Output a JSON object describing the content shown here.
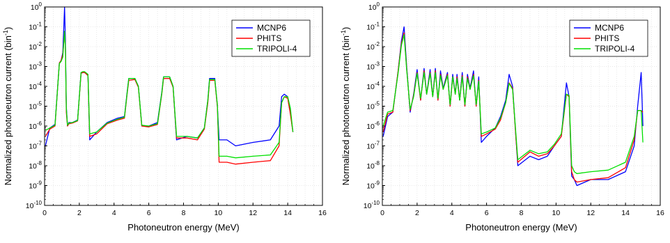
{
  "chart_data": [
    {
      "type": "line",
      "title": "",
      "xlabel": "Photoneutron energy (MeV)",
      "ylabel_main": "Normalized photoneutron current (bin",
      "ylabel_sup": "-1",
      "ylabel_close": ")",
      "xlim": [
        0,
        16
      ],
      "ylim": [
        1e-10,
        1
      ],
      "yscale": "log",
      "grid": true,
      "legend_position": "top-right",
      "x_ticks": [
        "0",
        "2",
        "4",
        "6",
        "8",
        "10",
        "12",
        "14",
        "16"
      ],
      "y_ticks": [
        {
          "base": "10",
          "exp": "-10"
        },
        {
          "base": "10",
          "exp": "-9"
        },
        {
          "base": "10",
          "exp": "-8"
        },
        {
          "base": "10",
          "exp": "-7"
        },
        {
          "base": "10",
          "exp": "-6"
        },
        {
          "base": "10",
          "exp": "-5"
        },
        {
          "base": "10",
          "exp": "-4"
        },
        {
          "base": "10",
          "exp": "-3"
        },
        {
          "base": "10",
          "exp": "-2"
        },
        {
          "base": "10",
          "exp": "-1"
        },
        {
          "base": "10",
          "exp": "0"
        }
      ],
      "series": [
        {
          "name": "MCNP6",
          "color": "#0000ff",
          "x": [
            0.05,
            0.3,
            0.6,
            0.85,
            0.95,
            1.05,
            1.15,
            1.2,
            1.25,
            1.32,
            1.4,
            1.6,
            1.9,
            2.1,
            2.2,
            2.3,
            2.5,
            2.6,
            3.0,
            3.6,
            4.2,
            4.6,
            4.75,
            4.85,
            5.2,
            5.4,
            5.6,
            6.0,
            6.5,
            6.75,
            6.85,
            7.2,
            7.4,
            7.6,
            8.2,
            8.8,
            9.2,
            9.4,
            9.5,
            9.8,
            9.95,
            10.05,
            10.5,
            11.0,
            12.0,
            13.0,
            13.5,
            13.65,
            13.8,
            14.0,
            14.15,
            14.3
          ],
          "y": [
            1e-07,
            8e-07,
            1.2e-06,
            0.0015,
            0.002,
            0.005,
            1,
            0.02,
            1e-05,
            1e-06,
            1.5e-06,
            1.5e-06,
            2e-06,
            0.0005,
            0.0005,
            0.0005,
            0.0004,
            2e-07,
            5e-07,
            1.5e-06,
            2.5e-06,
            3e-06,
            5e-05,
            0.00025,
            0.00025,
            0.0001,
            1e-06,
            1e-06,
            1.5e-06,
            5e-05,
            0.0003,
            0.0003,
            0.0001,
            2e-07,
            3e-07,
            2.5e-07,
            8e-07,
            2e-05,
            0.00025,
            0.00025,
            1e-05,
            2e-07,
            2e-07,
            1e-07,
            1.5e-07,
            2e-07,
            1e-06,
            3e-05,
            4e-05,
            3e-05,
            5e-06,
            5e-07
          ]
        },
        {
          "name": "PHITS",
          "color": "#ff0000",
          "x": [
            0.05,
            0.3,
            0.6,
            0.85,
            0.95,
            1.05,
            1.15,
            1.2,
            1.25,
            1.32,
            1.4,
            1.6,
            1.9,
            2.1,
            2.2,
            2.3,
            2.5,
            2.6,
            3.0,
            3.6,
            4.2,
            4.6,
            4.75,
            4.85,
            5.2,
            5.4,
            5.6,
            6.0,
            6.5,
            6.75,
            6.85,
            7.2,
            7.4,
            7.6,
            8.2,
            8.8,
            9.2,
            9.4,
            9.5,
            9.8,
            9.95,
            10.05,
            10.5,
            11.0,
            12.0,
            13.0,
            13.5,
            13.65,
            13.8,
            14.0,
            14.15,
            14.3
          ],
          "y": [
            3e-07,
            7e-07,
            1e-06,
            0.0015,
            0.002,
            0.004,
            0.05,
            0.01,
            5e-06,
            1e-06,
            1.3e-06,
            1.4e-06,
            1.8e-06,
            0.00045,
            0.0005,
            0.0005,
            0.00035,
            3e-07,
            4e-07,
            1.3e-06,
            2e-06,
            2.5e-06,
            4e-05,
            0.0002,
            0.00022,
            9e-05,
            1e-06,
            9e-07,
            1.2e-06,
            4e-05,
            0.00025,
            0.00025,
            9e-05,
            2.5e-07,
            2.5e-07,
            2e-07,
            7e-07,
            1.5e-05,
            0.0002,
            0.0002,
            1e-05,
            1.5e-08,
            1.5e-08,
            1.2e-08,
            1.5e-08,
            1.8e-08,
            1e-07,
            1.5e-05,
            3e-05,
            2.5e-05,
            4e-06,
            5e-07
          ]
        },
        {
          "name": "TRIPOLI-4",
          "color": "#00e000",
          "x": [
            0.05,
            0.3,
            0.6,
            0.85,
            0.95,
            1.05,
            1.15,
            1.2,
            1.25,
            1.32,
            1.4,
            1.6,
            1.9,
            2.1,
            2.2,
            2.3,
            2.5,
            2.6,
            3.0,
            3.6,
            4.2,
            4.6,
            4.75,
            4.85,
            5.2,
            5.4,
            5.6,
            6.0,
            6.5,
            6.75,
            6.85,
            7.2,
            7.4,
            7.6,
            8.2,
            8.8,
            9.2,
            9.4,
            9.5,
            9.8,
            9.95,
            10.05,
            10.5,
            11.0,
            12.0,
            13.0,
            13.5,
            13.65,
            13.8,
            14.0,
            14.15,
            14.3
          ],
          "y": [
            6e-07,
            8e-07,
            1.1e-06,
            0.0014,
            0.0018,
            0.003,
            0.06,
            0.01,
            8e-06,
            1.1e-06,
            1.4e-06,
            1.5e-06,
            1.9e-06,
            0.0005,
            0.00055,
            0.00055,
            0.0004,
            4e-07,
            5e-07,
            1.4e-06,
            2.2e-06,
            2.8e-06,
            4.5e-05,
            0.00025,
            0.00025,
            0.0001,
            1.1e-06,
            1e-06,
            1.3e-06,
            4.5e-05,
            0.0003,
            0.0003,
            0.0001,
            3e-07,
            3e-07,
            2.5e-07,
            8e-07,
            2e-05,
            0.00022,
            0.00022,
            1.2e-05,
            3e-08,
            3e-08,
            2.5e-08,
            3e-08,
            3.5e-08,
            1.5e-07,
            1.5e-05,
            3e-05,
            3e-05,
            8e-06,
            5e-07
          ]
        }
      ]
    },
    {
      "type": "line",
      "title": "",
      "xlabel": "Photoneutron energy (MeV)",
      "ylabel_main": "Normalized photoneutron current (bin",
      "ylabel_sup": "-1",
      "ylabel_close": ")",
      "xlim": [
        0,
        16
      ],
      "ylim": [
        1e-10,
        1
      ],
      "yscale": "log",
      "grid": true,
      "legend_position": "top-right",
      "x_ticks": [
        "0",
        "2",
        "4",
        "6",
        "8",
        "10",
        "12",
        "14",
        "16"
      ],
      "y_ticks": [
        {
          "base": "10",
          "exp": "-10"
        },
        {
          "base": "10",
          "exp": "-9"
        },
        {
          "base": "10",
          "exp": "-8"
        },
        {
          "base": "10",
          "exp": "-7"
        },
        {
          "base": "10",
          "exp": "-6"
        },
        {
          "base": "10",
          "exp": "-5"
        },
        {
          "base": "10",
          "exp": "-4"
        },
        {
          "base": "10",
          "exp": "-3"
        },
        {
          "base": "10",
          "exp": "-2"
        },
        {
          "base": "10",
          "exp": "-1"
        },
        {
          "base": "10",
          "exp": "0"
        }
      ],
      "series": [
        {
          "name": "MCNP6",
          "color": "#0000ff",
          "x": [
            0.05,
            0.3,
            0.6,
            0.9,
            1.1,
            1.25,
            1.4,
            1.6,
            1.8,
            2.0,
            2.2,
            2.4,
            2.55,
            2.75,
            2.9,
            3.05,
            3.2,
            3.35,
            3.5,
            3.75,
            3.9,
            4.05,
            4.2,
            4.3,
            4.45,
            4.6,
            4.75,
            4.9,
            5.05,
            5.25,
            5.4,
            5.55,
            5.7,
            6.0,
            6.5,
            6.8,
            7.1,
            7.3,
            7.5,
            7.7,
            7.8,
            8.5,
            9.0,
            9.5,
            9.9,
            10.3,
            10.6,
            10.75,
            10.9,
            11.05,
            11.2,
            12.0,
            13.0,
            14.0,
            14.5,
            14.7,
            14.9,
            15.0
          ],
          "y": [
            3e-07,
            3e-06,
            5e-06,
            0.0005,
            0.02,
            0.1,
            0.001,
            5e-06,
            4e-05,
            0.0007,
            2e-05,
            0.0008,
            4e-05,
            0.0007,
            3e-05,
            0.0008,
            2e-05,
            0.0006,
            8e-05,
            0.0005,
            1e-05,
            0.0004,
            4e-05,
            0.0004,
            2e-05,
            0.0005,
            1e-05,
            0.0004,
            8e-05,
            0.0006,
            1e-05,
            0.0003,
            1.5e-07,
            3e-07,
            8e-07,
            3e-06,
            2e-05,
            0.0004,
            0.0001,
            2e-07,
            1e-08,
            3e-08,
            2e-08,
            3e-08,
            1e-07,
            3e-07,
            0.00015,
            3e-05,
            3e-09,
            2e-09,
            1e-09,
            2e-09,
            2e-09,
            5e-09,
            1e-07,
            1e-05,
            0.0005,
            1e-06
          ]
        },
        {
          "name": "PHITS",
          "color": "#ff0000",
          "x": [
            0.05,
            0.3,
            0.6,
            0.9,
            1.1,
            1.25,
            1.4,
            1.6,
            1.8,
            2.0,
            2.2,
            2.4,
            2.55,
            2.75,
            2.9,
            3.05,
            3.2,
            3.35,
            3.5,
            3.75,
            3.9,
            4.05,
            4.2,
            4.3,
            4.45,
            4.6,
            4.75,
            4.9,
            5.05,
            5.25,
            5.4,
            5.55,
            5.7,
            6.0,
            6.5,
            6.8,
            7.1,
            7.3,
            7.5,
            7.7,
            7.8,
            8.5,
            9.0,
            9.5,
            9.9,
            10.3,
            10.6,
            10.75,
            10.9,
            11.05,
            11.2,
            12.0,
            13.0,
            14.0,
            14.5,
            14.7,
            14.9,
            15.0
          ],
          "y": [
            5e-07,
            4e-06,
            5e-06,
            0.0005,
            0.015,
            0.05,
            0.0008,
            6e-06,
            3.5e-05,
            0.0005,
            2e-05,
            0.0006,
            4e-05,
            0.0005,
            3e-05,
            0.0006,
            2e-05,
            0.0004,
            7e-05,
            0.0004,
            1e-05,
            0.0003,
            4e-05,
            0.0003,
            2e-05,
            0.00035,
            1e-05,
            0.0003,
            7e-05,
            0.0004,
            1e-05,
            0.0002,
            3e-07,
            4e-07,
            7e-07,
            2e-06,
            1.5e-05,
            0.00015,
            8e-05,
            2e-07,
            1.5e-08,
            5e-08,
            3e-08,
            4e-08,
            1e-07,
            3e-07,
            4e-05,
            3e-05,
            5e-09,
            2e-09,
            1.5e-09,
            2e-09,
            2.5e-09,
            8e-09,
            2e-07,
            6e-06,
            6e-06,
            5e-06
          ]
        },
        {
          "name": "TRIPOLI-4",
          "color": "#00e000",
          "x": [
            0.05,
            0.3,
            0.6,
            0.9,
            1.1,
            1.25,
            1.4,
            1.6,
            1.8,
            2.0,
            2.2,
            2.4,
            2.55,
            2.75,
            2.9,
            3.05,
            3.2,
            3.35,
            3.5,
            3.75,
            3.9,
            4.05,
            4.2,
            4.3,
            4.45,
            4.6,
            4.75,
            4.9,
            5.05,
            5.25,
            5.4,
            5.55,
            5.7,
            6.0,
            6.5,
            6.8,
            7.1,
            7.3,
            7.5,
            7.7,
            7.8,
            8.5,
            9.0,
            9.5,
            9.9,
            10.3,
            10.6,
            10.75,
            10.9,
            11.05,
            11.2,
            12.0,
            13.0,
            14.0,
            14.5,
            14.7,
            14.9,
            15.0
          ],
          "y": [
            1e-06,
            5e-06,
            6e-06,
            0.0004,
            0.012,
            0.04,
            0.0007,
            7e-06,
            3e-05,
            0.00045,
            2.5e-05,
            0.0005,
            4e-05,
            0.00045,
            3e-05,
            0.0005,
            2.5e-05,
            0.00035,
            7e-05,
            0.00035,
            1.2e-05,
            0.0003,
            4e-05,
            0.00025,
            2e-05,
            0.0003,
            1.2e-05,
            0.00025,
            7e-05,
            0.00035,
            1.2e-05,
            0.00018,
            4e-07,
            5e-07,
            8e-07,
            2.5e-06,
            1.5e-05,
            0.00014,
            7e-05,
            3e-07,
            2e-08,
            6e-08,
            4e-08,
            5e-08,
            1.2e-07,
            4e-07,
            4e-05,
            3.5e-05,
            1e-08,
            5e-09,
            4e-09,
            5e-09,
            6e-09,
            1.5e-08,
            3e-07,
            6e-06,
            6e-06,
            1.5e-07
          ]
        }
      ]
    }
  ]
}
